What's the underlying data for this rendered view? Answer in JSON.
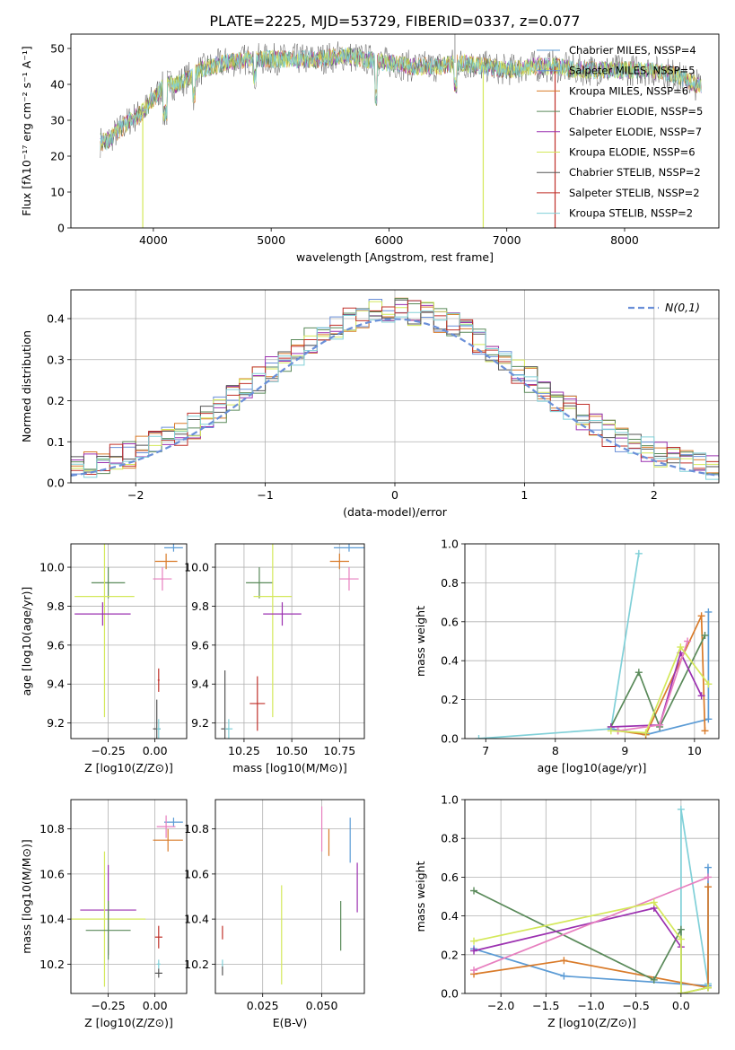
{
  "figure_title": "PLATE=2225, MJD=53729, FIBERID=0337, z=0.077",
  "colors": {
    "chabrier_miles": "#5b9bd5",
    "salpeter_miles": "#6a8fd8",
    "kroupa_miles": "#d97b2a",
    "chabrier_elodie": "#5a8a5a",
    "salpeter_elodie": "#9b30b0",
    "kroupa_elodie": "#d4e85a",
    "chabrier_stelib": "#555555",
    "salpeter_stelib": "#c0302a",
    "kroupa_stelib": "#80d0d8",
    "pink": "#e77fbf",
    "grid": "#b0b0b0"
  },
  "chart_data": [
    {
      "id": "spectrum",
      "type": "line",
      "title": "PLATE=2225, MJD=53729, FIBERID=0337, z=0.077",
      "xlabel": "wavelength [Angstrom, rest frame]",
      "ylabel": "Flux [fλ10⁻¹⁷ erg cm⁻² s⁻¹ A⁻¹]",
      "xlim": [
        3300,
        8800
      ],
      "ylim": [
        0,
        54
      ],
      "xticks": [
        4000,
        5000,
        6000,
        7000,
        8000
      ],
      "yticks": [
        0,
        10,
        20,
        30,
        40,
        50
      ],
      "grid": false,
      "legend_position": "top-right",
      "legend": [
        "Chabrier MILES, N_SSP=4",
        "Salpeter MILES, N_SSP=5",
        "Kroupa MILES, N_SSP=6",
        "Chabrier ELODIE, N_SSP=5",
        "Salpeter ELODIE, N_SSP=7",
        "Kroupa ELODIE, N_SSP=6",
        "Chabrier STELIB, N_SSP=2",
        "Salpeter STELIB, N_SSP=2",
        "Kroupa STELIB, N_SSP=2"
      ],
      "envelope": [
        [
          3550,
          24
        ],
        [
          3600,
          24
        ],
        [
          3700,
          27
        ],
        [
          3800,
          30
        ],
        [
          3900,
          32
        ],
        [
          4000,
          36
        ],
        [
          4100,
          40
        ],
        [
          4200,
          40
        ],
        [
          4400,
          44
        ],
        [
          4600,
          46
        ],
        [
          4800,
          47
        ],
        [
          5000,
          47
        ],
        [
          5200,
          47
        ],
        [
          5400,
          47
        ],
        [
          5600,
          48
        ],
        [
          5800,
          47
        ],
        [
          6000,
          46
        ],
        [
          6200,
          45
        ],
        [
          6400,
          45
        ],
        [
          6600,
          46
        ],
        [
          6800,
          45
        ],
        [
          7000,
          44
        ],
        [
          7200,
          45
        ],
        [
          7400,
          45
        ],
        [
          7600,
          44
        ],
        [
          7800,
          44
        ],
        [
          8000,
          44
        ],
        [
          8200,
          44
        ],
        [
          8400,
          43
        ],
        [
          8600,
          40
        ]
      ]
    },
    {
      "id": "residuals",
      "type": "line",
      "xlabel": "(data-model)/error",
      "ylabel": "Normed distribution",
      "xlim": [
        -2.5,
        2.5
      ],
      "ylim": [
        0,
        0.47
      ],
      "xticks": [
        -2,
        -1,
        0,
        1,
        2
      ],
      "yticks": [
        0.0,
        0.1,
        0.2,
        0.3,
        0.4
      ],
      "grid": true,
      "legend_position": "top-right",
      "legend": [
        "N(0,1)"
      ],
      "hist_edges": [
        -2.5,
        2.5
      ],
      "hist_bins": 50
    },
    {
      "id": "age_vs_Z",
      "type": "scatter",
      "xlabel": "Z [log10(Z/Z⊙)]",
      "ylabel": "age  [log10(age/yr)]",
      "xlim": [
        -0.45,
        0.17
      ],
      "ylim": [
        9.12,
        10.12
      ],
      "xticks": [
        -0.25,
        0.0
      ],
      "xtick_labels": [
        "−0.25",
        "0.00"
      ],
      "yticks": [
        9.2,
        9.4,
        9.6,
        9.8,
        10.0
      ],
      "grid": true,
      "points": [
        {
          "color": "chabrier_miles",
          "x": 0.1,
          "xerr": 0.05,
          "y": 10.1,
          "yerr": 0.02
        },
        {
          "color": "kroupa_miles",
          "x": 0.06,
          "xerr": 0.06,
          "y": 10.03,
          "yerr": 0.04
        },
        {
          "color": "pink",
          "x": 0.04,
          "xerr": 0.05,
          "y": 9.94,
          "yerr": 0.06
        },
        {
          "color": "chabrier_elodie",
          "x": -0.25,
          "xerr": 0.09,
          "y": 9.92,
          "yerr": 0.08
        },
        {
          "color": "kroupa_elodie",
          "x": -0.27,
          "xerr": 0.16,
          "y": 9.85,
          "yerr": 0.62
        },
        {
          "color": "salpeter_elodie",
          "x": -0.28,
          "xerr": 0.15,
          "y": 9.76,
          "yerr": 0.06
        },
        {
          "color": "salpeter_stelib",
          "x": 0.02,
          "xerr": 0.005,
          "y": 9.42,
          "yerr": 0.06
        },
        {
          "color": "chabrier_stelib",
          "x": 0.01,
          "xerr": 0.02,
          "y": 9.17,
          "yerr": 0.15
        },
        {
          "color": "kroupa_stelib",
          "x": 0.02,
          "xerr": 0.01,
          "y": 9.17,
          "yerr": 0.05
        }
      ]
    },
    {
      "id": "age_vs_mass",
      "type": "scatter",
      "xlabel": "mass [log10(M/M⊙)]",
      "xlim": [
        10.1,
        10.88
      ],
      "ylim": [
        9.12,
        10.12
      ],
      "xticks": [
        10.25,
        10.5,
        10.75
      ],
      "xtick_labels": [
        "10.25",
        "10.50",
        "10.75"
      ],
      "yticks": [
        9.2,
        9.4,
        9.6,
        9.8,
        10.0
      ],
      "grid": true,
      "points": [
        {
          "color": "chabrier_miles",
          "x": 10.8,
          "xerr": 0.08,
          "y": 10.1,
          "yerr": 0.02
        },
        {
          "color": "kroupa_miles",
          "x": 10.75,
          "xerr": 0.05,
          "y": 10.03,
          "yerr": 0.04
        },
        {
          "color": "pink",
          "x": 10.8,
          "xerr": 0.05,
          "y": 9.94,
          "yerr": 0.06
        },
        {
          "color": "chabrier_elodie",
          "x": 10.33,
          "xerr": 0.07,
          "y": 9.92,
          "yerr": 0.08
        },
        {
          "color": "kroupa_elodie",
          "x": 10.4,
          "xerr": 0.1,
          "y": 9.85,
          "yerr": 0.62
        },
        {
          "color": "salpeter_elodie",
          "x": 10.45,
          "xerr": 0.1,
          "y": 9.76,
          "yerr": 0.06
        },
        {
          "color": "salpeter_stelib",
          "x": 10.32,
          "xerr": 0.04,
          "y": 9.3,
          "yerr": 0.14
        },
        {
          "color": "chabrier_stelib",
          "x": 10.15,
          "xerr": 0.02,
          "y": 9.17,
          "yerr": 0.3
        },
        {
          "color": "kroupa_stelib",
          "x": 10.17,
          "xerr": 0.02,
          "y": 9.17,
          "yerr": 0.05
        }
      ]
    },
    {
      "id": "mass_weight_vs_age",
      "type": "line",
      "xlabel": "age  [log10(age/yr)]",
      "ylabel": "mass weight",
      "xlim": [
        6.7,
        10.35
      ],
      "ylim": [
        0.0,
        1.0
      ],
      "xticks": [
        7,
        8,
        9,
        10
      ],
      "yticks": [
        0.0,
        0.2,
        0.4,
        0.6,
        0.8,
        1.0
      ],
      "grid": true,
      "series": [
        {
          "color": "kroupa_stelib",
          "x": [
            6.9,
            8.8,
            9.2
          ],
          "y": [
            0.0,
            0.05,
            0.95
          ]
        },
        {
          "color": "chabrier_miles",
          "x": [
            8.8,
            9.3,
            10.2,
            10.2
          ],
          "y": [
            0.05,
            0.02,
            0.1,
            0.65
          ]
        },
        {
          "color": "kroupa_miles",
          "x": [
            8.9,
            9.3,
            10.1,
            10.15
          ],
          "y": [
            0.04,
            0.02,
            0.63,
            0.04
          ]
        },
        {
          "color": "chabrier_elodie",
          "x": [
            8.8,
            9.2,
            9.5,
            10.15
          ],
          "y": [
            0.06,
            0.34,
            0.06,
            0.53
          ]
        },
        {
          "color": "salpeter_elodie",
          "x": [
            8.8,
            9.5,
            9.8,
            10.1
          ],
          "y": [
            0.06,
            0.07,
            0.44,
            0.22
          ]
        },
        {
          "color": "pink",
          "x": [
            8.9,
            9.5,
            9.9
          ],
          "y": [
            0.04,
            0.07,
            0.5
          ]
        },
        {
          "color": "kroupa_elodie",
          "x": [
            8.8,
            9.3,
            9.8,
            10.2
          ],
          "y": [
            0.04,
            0.03,
            0.47,
            0.28
          ]
        }
      ]
    },
    {
      "id": "mass_vs_Z",
      "type": "scatter",
      "xlabel": "Z [log10(Z/Z⊙)]",
      "ylabel": "mass [log10(M/M⊙)]",
      "xlim": [
        -0.45,
        0.17
      ],
      "ylim": [
        10.07,
        10.93
      ],
      "xticks": [
        -0.25,
        0.0
      ],
      "xtick_labels": [
        "−0.25",
        "0.00"
      ],
      "yticks": [
        10.2,
        10.4,
        10.6,
        10.8
      ],
      "grid": true,
      "points": [
        {
          "color": "chabrier_miles",
          "x": 0.1,
          "xerr": 0.05,
          "y": 10.83,
          "yerr": 0.02
        },
        {
          "color": "pink",
          "x": 0.06,
          "xerr": 0.05,
          "y": 10.81,
          "yerr": 0.05
        },
        {
          "color": "kroupa_miles",
          "x": 0.07,
          "xerr": 0.08,
          "y": 10.75,
          "yerr": 0.05
        },
        {
          "color": "salpeter_elodie",
          "x": -0.25,
          "xerr": 0.15,
          "y": 10.44,
          "yerr": 0.2
        },
        {
          "color": "kroupa_elodie",
          "x": -0.27,
          "xerr": 0.22,
          "y": 10.4,
          "yerr": 0.3
        },
        {
          "color": "chabrier_elodie",
          "x": -0.25,
          "xerr": 0.12,
          "y": 10.35,
          "yerr": 0.13
        },
        {
          "color": "salpeter_stelib",
          "x": 0.02,
          "xerr": 0.02,
          "y": 10.32,
          "yerr": 0.05
        },
        {
          "color": "kroupa_stelib",
          "x": 0.02,
          "xerr": 0.01,
          "y": 10.2,
          "yerr": 0.02
        },
        {
          "color": "chabrier_stelib",
          "x": 0.02,
          "xerr": 0.02,
          "y": 10.16,
          "yerr": 0.02
        }
      ]
    },
    {
      "id": "mass_vs_EBV",
      "type": "scatter",
      "xlabel": "E(B-V)",
      "xlim": [
        0.005,
        0.068
      ],
      "ylim": [
        10.07,
        10.93
      ],
      "xticks": [
        0.025,
        0.05
      ],
      "xtick_labels": [
        "0.025",
        "0.050"
      ],
      "yticks": [
        10.2,
        10.4,
        10.6,
        10.8
      ],
      "grid": true,
      "points": [
        {
          "color": "chabrier_miles",
          "x": 0.062,
          "xerr": 0.0,
          "y": 10.75,
          "yerr": 0.1
        },
        {
          "color": "pink",
          "x": 0.05,
          "xerr": 0.0,
          "y": 10.8,
          "yerr": 0.1
        },
        {
          "color": "kroupa_miles",
          "x": 0.053,
          "xerr": 0.0,
          "y": 10.74,
          "yerr": 0.06
        },
        {
          "color": "salpeter_elodie",
          "x": 0.065,
          "xerr": 0.0,
          "y": 10.54,
          "yerr": 0.11
        },
        {
          "color": "kroupa_elodie",
          "x": 0.033,
          "xerr": 0.0,
          "y": 10.33,
          "yerr": 0.22
        },
        {
          "color": "chabrier_elodie",
          "x": 0.058,
          "xerr": 0.0,
          "y": 10.37,
          "yerr": 0.11
        },
        {
          "color": "salpeter_stelib",
          "x": 0.008,
          "xerr": 0.0,
          "y": 10.34,
          "yerr": 0.03
        },
        {
          "color": "kroupa_stelib",
          "x": 0.008,
          "xerr": 0.0,
          "y": 10.2,
          "yerr": 0.02
        },
        {
          "color": "chabrier_stelib",
          "x": 0.008,
          "xerr": 0.0,
          "y": 10.17,
          "yerr": 0.02
        }
      ]
    },
    {
      "id": "mass_weight_vs_Z",
      "type": "line",
      "xlabel": "Z [log10(Z/Z⊙)]",
      "ylabel": "mass weight",
      "xlim": [
        -2.4,
        0.42
      ],
      "ylim": [
        0.0,
        1.0
      ],
      "xticks": [
        -2.0,
        -1.5,
        -1.0,
        -0.5,
        0.0
      ],
      "xtick_labels": [
        "−2.0",
        "−1.5",
        "−1.0",
        "−0.5",
        "0.0"
      ],
      "yticks": [
        0.0,
        0.2,
        0.4,
        0.6,
        0.8,
        1.0
      ],
      "grid": true,
      "series": [
        {
          "color": "kroupa_stelib",
          "x": [
            0.0,
            0.0,
            0.3
          ],
          "y": [
            0.0,
            0.95,
            0.05
          ]
        },
        {
          "color": "chabrier_miles",
          "x": [
            -2.3,
            -1.3,
            0.3,
            0.3
          ],
          "y": [
            0.23,
            0.09,
            0.04,
            0.65
          ]
        },
        {
          "color": "kroupa_miles",
          "x": [
            -2.3,
            -1.3,
            0.3,
            0.3
          ],
          "y": [
            0.1,
            0.17,
            0.03,
            0.55
          ]
        },
        {
          "color": "chabrier_elodie",
          "x": [
            -2.3,
            -0.3,
            0.0,
            0.0,
            0.3
          ],
          "y": [
            0.53,
            0.07,
            0.33,
            0.0,
            0.03
          ]
        },
        {
          "color": "salpeter_elodie",
          "x": [
            -2.3,
            -0.3,
            0.0
          ],
          "y": [
            0.22,
            0.44,
            0.24
          ]
        },
        {
          "color": "pink",
          "x": [
            -2.3,
            0.3
          ],
          "y": [
            0.12,
            0.6
          ]
        },
        {
          "color": "kroupa_elodie",
          "x": [
            -2.3,
            -0.3,
            0.0,
            0.0,
            0.3
          ],
          "y": [
            0.27,
            0.47,
            0.28,
            0.0,
            0.03
          ]
        }
      ]
    }
  ]
}
